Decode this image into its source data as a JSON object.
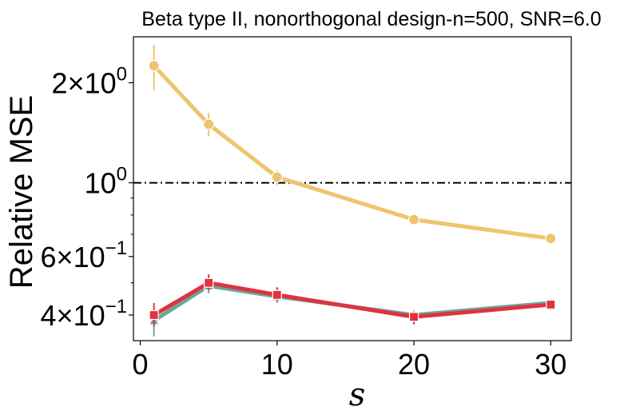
{
  "chart_data": {
    "type": "line",
    "title": "Beta type II, nonorthogonal design-n=500, SNR=6.0",
    "xlabel": "s",
    "ylabel": "Relative MSE",
    "yscale": "log",
    "xlim": [
      -0.5,
      31.5
    ],
    "ylim": [
      0.335,
      2.75
    ],
    "x": [
      1,
      5,
      10,
      20,
      30
    ],
    "xticks": [
      0,
      10,
      20,
      30
    ],
    "xtick_labels": [
      "0",
      "10",
      "20",
      "30"
    ],
    "yticks": [
      {
        "value": 2.0,
        "mant": "2",
        "exp": "0"
      },
      {
        "value": 1.0,
        "mant": "",
        "exp": "0"
      },
      {
        "value": 0.6,
        "mant": "6",
        "exp": "−1"
      },
      {
        "value": 0.4,
        "mant": "4",
        "exp": "−1"
      }
    ],
    "reference_line": {
      "value": 1.0,
      "style": "dash-dot",
      "color": "#000000"
    },
    "series": [
      {
        "name": "yellow-series",
        "color": "#eec46e",
        "marker": "circle",
        "values": [
          2.25,
          1.5,
          1.04,
          0.775,
          0.68
        ],
        "err_low": [
          1.9,
          1.38,
          0.985,
          0.755,
          0.665
        ],
        "err_high": [
          2.6,
          1.62,
          1.09,
          0.795,
          0.695
        ]
      },
      {
        "name": "teal-series",
        "color": "#6aa79a",
        "marker": "triangle",
        "values": [
          0.385,
          0.49,
          0.455,
          0.4,
          0.435
        ],
        "err_low": [
          0.345,
          0.465,
          0.435,
          0.385,
          0.42
        ],
        "err_high": [
          0.415,
          0.515,
          0.47,
          0.415,
          0.45
        ]
      },
      {
        "name": "red-series",
        "color": "#e03240",
        "marker": "square",
        "values": [
          0.4,
          0.5,
          0.46,
          0.395,
          0.43
        ],
        "err_low": [
          0.37,
          0.475,
          0.44,
          0.375,
          0.415
        ],
        "err_high": [
          0.435,
          0.53,
          0.485,
          0.41,
          0.445
        ]
      }
    ]
  }
}
